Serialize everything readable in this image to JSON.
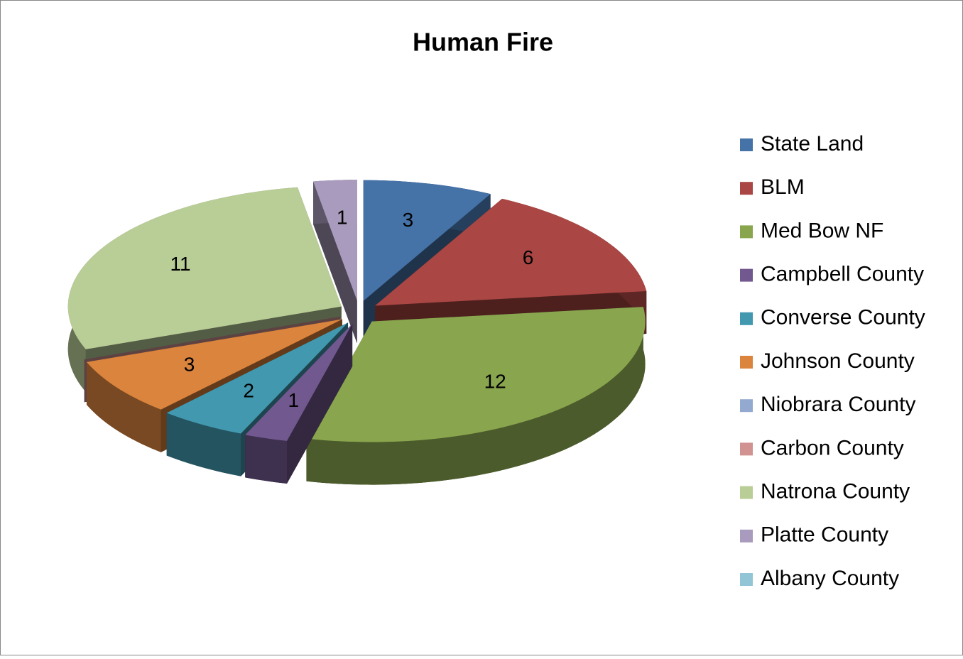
{
  "chart_data": {
    "type": "pie",
    "title": "Human Fire",
    "categories": [
      "State Land",
      "BLM",
      "Med Bow NF",
      "Campbell County",
      "Converse County",
      "Johnson County",
      "Niobrara County",
      "Carbon County",
      "Natrona County",
      "Platte County",
      "Albany County"
    ],
    "values": [
      3,
      6,
      12,
      1,
      2,
      3,
      0,
      0,
      11,
      1,
      0
    ],
    "colors": [
      "#4572a7",
      "#aa4643",
      "#89a54e",
      "#71588f",
      "#4198af",
      "#db843d",
      "#93a9cf",
      "#d19392",
      "#b9cd96",
      "#a99bbd",
      "#92c5d5"
    ],
    "legend": "right"
  }
}
